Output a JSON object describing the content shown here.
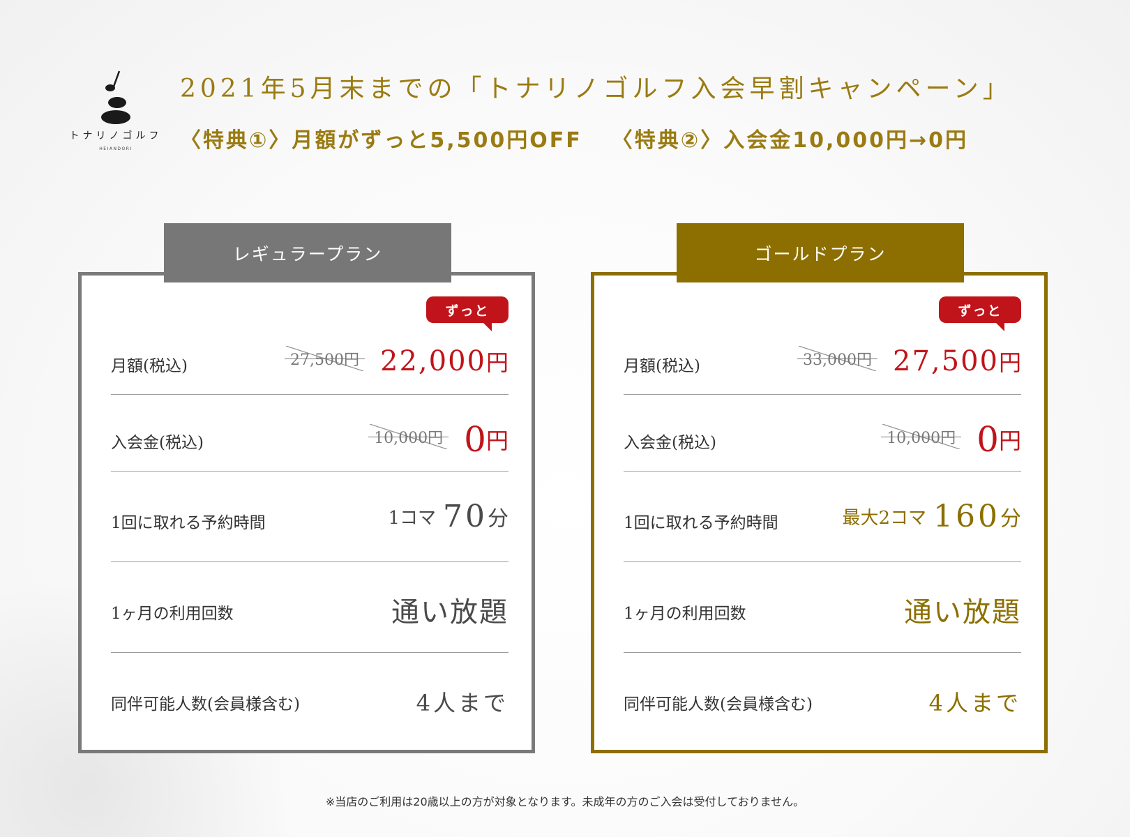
{
  "logo": {
    "name": "トナリノゴルフ",
    "sub": "HEIANDORI"
  },
  "header": {
    "headline": "2021年5月末までの「トナリノゴルフ入会早割キャンペーン」",
    "benefit1": "〈特典①〉月額がずっと5,500円OFF",
    "benefit2": "〈特典②〉入会金10,000円→0円"
  },
  "plans": [
    {
      "name": "レギュラープラン",
      "badge": "ずっと",
      "monthly_label": "月額(税込)",
      "monthly_old": "27,500円",
      "monthly_new": "22,000",
      "monthly_unit": "円",
      "fee_label": "入会金(税込)",
      "fee_old": "10,000円",
      "fee_new": "0",
      "fee_unit": "円",
      "reserve_label": "1回に取れる予約時間",
      "reserve_slots": "1コマ",
      "reserve_minutes": "70",
      "reserve_unit": "分",
      "usage_label": "1ヶ月の利用回数",
      "usage_value": "通い放題",
      "companion_label": "同伴可能人数(会員様含む)",
      "companion_value": "4人まで"
    },
    {
      "name": "ゴールドプラン",
      "badge": "ずっと",
      "monthly_label": "月額(税込)",
      "monthly_old": "33,000円",
      "monthly_new": "27,500",
      "monthly_unit": "円",
      "fee_label": "入会金(税込)",
      "fee_old": "10,000円",
      "fee_new": "0",
      "fee_unit": "円",
      "reserve_label": "1回に取れる予約時間",
      "reserve_slots": "最大2コマ",
      "reserve_minutes": "160",
      "reserve_unit": "分",
      "usage_label": "1ヶ月の利用回数",
      "usage_value": "通い放題",
      "companion_label": "同伴可能人数(会員様含む)",
      "companion_value": "4人まで"
    }
  ],
  "footnote": "※当店のご利用は20歳以上の方が対象となります。未成年の方のご入会は受付しておりません。",
  "colors": {
    "gold": "#8c6f00",
    "gray": "#777777",
    "red": "#c0141a"
  }
}
